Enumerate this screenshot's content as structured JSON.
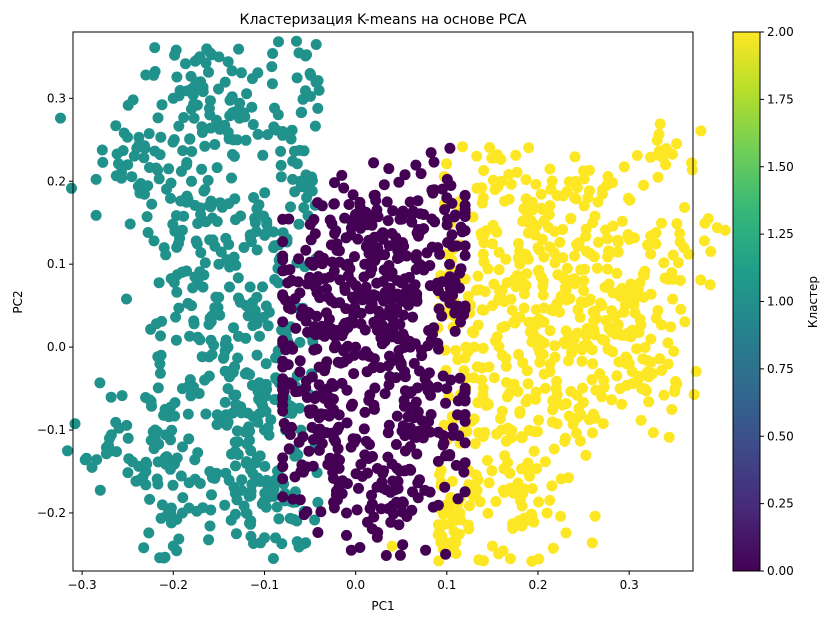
{
  "chart_data": {
    "type": "scatter",
    "title": "Кластеризация K-means на основе PCA",
    "xlabel": "PC1",
    "ylabel": "PC2",
    "xlim": [
      -0.31,
      0.37
    ],
    "ylim": [
      -0.27,
      0.38
    ],
    "xticks": [
      -0.3,
      -0.2,
      -0.1,
      0.0,
      0.1,
      0.2,
      0.3
    ],
    "xtick_labels": [
      "−0.3",
      "−0.2",
      "−0.1",
      "0.0",
      "0.1",
      "0.2",
      "0.3"
    ],
    "yticks": [
      -0.2,
      -0.1,
      0.0,
      0.1,
      0.2,
      0.3
    ],
    "ytick_labels": [
      "−0.2",
      "−0.1",
      "0.0",
      "0.1",
      "0.2",
      "0.3"
    ],
    "grid": false,
    "colormap": "viridis",
    "series": [
      {
        "cluster": 0,
        "color": "#440154",
        "points": [
          [
            0.0,
            0.0
          ],
          [
            0.02,
            0.03
          ],
          [
            -0.03,
            -0.05
          ],
          [
            0.05,
            -0.02
          ],
          [
            0.04,
            0.06
          ],
          [
            -0.05,
            0.04
          ],
          [
            0.08,
            0.02
          ],
          [
            -0.02,
            -0.1
          ],
          [
            0.06,
            -0.12
          ],
          [
            0.01,
            0.1
          ],
          [
            -0.06,
            -0.15
          ],
          [
            0.03,
            -0.17
          ],
          [
            0.09,
            0.12
          ],
          [
            0.0,
            0.15
          ],
          [
            -0.04,
            0.11
          ],
          [
            0.07,
            -0.16
          ],
          [
            -0.01,
            -0.2
          ],
          [
            0.05,
            0.16
          ],
          [
            -0.07,
            0.08
          ],
          [
            0.1,
            -0.05
          ],
          [
            0.02,
            -0.07
          ],
          [
            -0.03,
            0.06
          ],
          [
            0.04,
            0.09
          ],
          [
            0.06,
            0.0
          ],
          [
            -0.05,
            -0.08
          ],
          [
            0.08,
            -0.09
          ],
          [
            0.01,
            -0.13
          ],
          [
            0.03,
            0.13
          ],
          [
            -0.02,
            0.02
          ],
          [
            0.09,
            0.07
          ],
          [
            0.1,
            0.18
          ],
          [
            0.0,
            0.16
          ],
          [
            -0.08,
            -0.04
          ],
          [
            0.05,
            -0.19
          ],
          [
            0.07,
            0.1
          ]
        ]
      },
      {
        "cluster": 1,
        "color": "#21918c",
        "points": [
          [
            -0.12,
            0.05
          ],
          [
            -0.15,
            0.1
          ],
          [
            -0.18,
            0.2
          ],
          [
            -0.2,
            0.3
          ],
          [
            -0.14,
            -0.05
          ],
          [
            -0.1,
            -0.1
          ],
          [
            -0.16,
            -0.15
          ],
          [
            -0.22,
            -0.1
          ],
          [
            -0.08,
            0.0
          ],
          [
            -0.11,
            0.15
          ],
          [
            -0.13,
            0.25
          ],
          [
            -0.17,
            0.32
          ],
          [
            -0.09,
            -0.18
          ],
          [
            -0.19,
            -0.05
          ],
          [
            -0.12,
            -0.2
          ],
          [
            -0.25,
            0.22
          ],
          [
            -0.23,
            -0.15
          ],
          [
            -0.15,
            0.35
          ],
          [
            -0.06,
            0.2
          ],
          [
            -0.27,
            -0.11
          ],
          [
            -0.2,
            -0.24
          ],
          [
            -0.1,
            -0.23
          ],
          [
            -0.05,
            0.33
          ],
          [
            -0.14,
            0.0
          ],
          [
            -0.07,
            -0.08
          ],
          [
            -0.18,
            0.05
          ],
          [
            -0.21,
            0.12
          ],
          [
            -0.16,
            0.28
          ],
          [
            -0.24,
            0.24
          ],
          [
            -0.08,
            0.26
          ],
          [
            -0.12,
            -0.14
          ],
          [
            -0.19,
            -0.2
          ],
          [
            -0.09,
            0.12
          ],
          [
            -0.13,
            -0.07
          ],
          [
            -0.17,
            0.16
          ]
        ]
      },
      {
        "cluster": 2,
        "color": "#fde725",
        "points": [
          [
            0.15,
            0.05
          ],
          [
            0.18,
            0.1
          ],
          [
            0.2,
            0.0
          ],
          [
            0.22,
            -0.05
          ],
          [
            0.16,
            -0.1
          ],
          [
            0.25,
            0.08
          ],
          [
            0.28,
            0.02
          ],
          [
            0.3,
            -0.02
          ],
          [
            0.19,
            0.15
          ],
          [
            0.14,
            0.18
          ],
          [
            0.26,
            0.15
          ],
          [
            0.34,
            0.22
          ],
          [
            0.36,
            0.12
          ],
          [
            0.32,
            -0.03
          ],
          [
            0.12,
            -0.15
          ],
          [
            0.17,
            -0.17
          ],
          [
            0.21,
            -0.2
          ],
          [
            0.1,
            -0.19
          ],
          [
            0.04,
            -0.24
          ],
          [
            0.15,
            -0.24
          ],
          [
            0.24,
            0.18
          ],
          [
            0.3,
            0.13
          ],
          [
            0.23,
            -0.11
          ],
          [
            0.13,
            0.0
          ],
          [
            0.27,
            0.05
          ],
          [
            0.2,
            0.12
          ],
          [
            0.16,
            0.2
          ],
          [
            0.11,
            0.08
          ],
          [
            0.29,
            -0.05
          ],
          [
            0.18,
            -0.08
          ],
          [
            0.22,
            0.05
          ],
          [
            0.14,
            -0.05
          ],
          [
            0.26,
            -0.02
          ],
          [
            0.31,
            0.07
          ],
          [
            0.19,
            0.03
          ]
        ]
      }
    ],
    "colorbar": {
      "label": "Кластер",
      "min": 0.0,
      "max": 2.0,
      "ticks": [
        0.0,
        0.25,
        0.5,
        0.75,
        1.0,
        1.25,
        1.5,
        1.75,
        2.0
      ],
      "tick_labels": [
        "0.00",
        "0.25",
        "0.50",
        "0.75",
        "1.00",
        "1.25",
        "1.50",
        "1.75",
        "2.00"
      ],
      "colors": [
        "#440154",
        "#482878",
        "#3e4989",
        "#31688e",
        "#26828e",
        "#1f9e89",
        "#35b779",
        "#6ece58",
        "#b5de2b",
        "#fde725"
      ]
    }
  }
}
